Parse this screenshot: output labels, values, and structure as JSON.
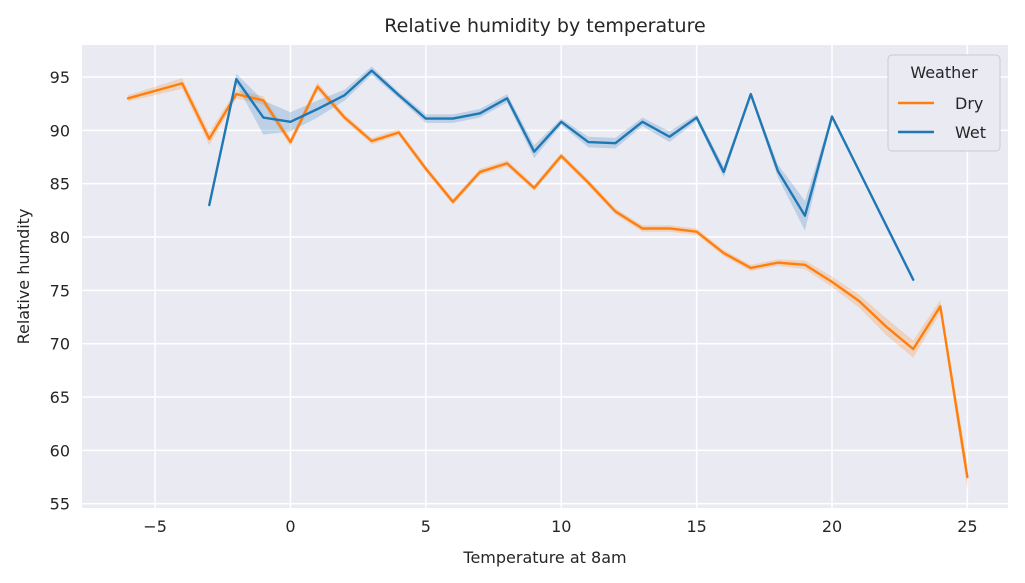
{
  "chart_data": {
    "type": "line",
    "title": "Relative humidity by temperature",
    "xlabel": "Temperature at 8am",
    "ylabel": "Relative humdity",
    "xlim": [
      -7.7,
      26.5
    ],
    "ylim": [
      54.6,
      98.0
    ],
    "xticks": [
      -5,
      0,
      5,
      10,
      15,
      20,
      25
    ],
    "xtick_labels": [
      "−5",
      "0",
      "5",
      "10",
      "15",
      "20",
      "25"
    ],
    "yticks": [
      55,
      60,
      65,
      70,
      75,
      80,
      85,
      90,
      95
    ],
    "ytick_labels": [
      "55",
      "60",
      "65",
      "70",
      "75",
      "80",
      "85",
      "90",
      "95"
    ],
    "grid": true,
    "background": "#eaeaf2",
    "legend": {
      "title": "Weather",
      "placement": "top-right"
    },
    "series": [
      {
        "name": "Dry",
        "color": "#ff7f0e",
        "x": [
          -6,
          -4,
          -3,
          -2,
          -1,
          0,
          1,
          2,
          3,
          4,
          5,
          6,
          7,
          8,
          9,
          10,
          11,
          12,
          13,
          14,
          15,
          16,
          17,
          18,
          19,
          20,
          21,
          22,
          23,
          24,
          25
        ],
        "y": [
          93.0,
          94.4,
          89.2,
          93.4,
          92.8,
          88.9,
          94.1,
          91.2,
          89.0,
          89.8,
          86.4,
          83.3,
          86.1,
          86.9,
          84.6,
          87.6,
          85.1,
          82.4,
          80.8,
          80.8,
          80.5,
          78.5,
          77.1,
          77.6,
          77.4,
          75.8,
          74.0,
          71.6,
          69.5,
          73.5,
          57.5
        ],
        "ci": [
          0.3,
          0.5,
          0.6,
          0.4,
          0.4,
          0.4,
          0.4,
          0.3,
          0.3,
          0.3,
          0.3,
          0.3,
          0.3,
          0.3,
          0.3,
          0.3,
          0.3,
          0.3,
          0.3,
          0.3,
          0.3,
          0.3,
          0.3,
          0.3,
          0.4,
          0.5,
          0.6,
          0.8,
          0.8,
          0.6,
          1.2
        ]
      },
      {
        "name": "Wet",
        "color": "#1f77b4",
        "x": [
          -3,
          -2,
          -1,
          0,
          1,
          2,
          3,
          4,
          5,
          6,
          7,
          8,
          9,
          10,
          11,
          12,
          13,
          14,
          15,
          16,
          17,
          18,
          19,
          20,
          21,
          22,
          23
        ],
        "y": [
          83.0,
          94.8,
          91.2,
          90.8,
          92.0,
          93.3,
          95.6,
          93.3,
          91.1,
          91.1,
          91.6,
          93.0,
          88.0,
          90.8,
          88.9,
          88.8,
          90.8,
          89.4,
          91.2,
          86.1,
          93.4,
          86.2,
          82.0,
          91.3,
          86.2,
          81.1,
          76.0
        ],
        "ci": [
          0.0,
          0.5,
          1.6,
          0.9,
          0.8,
          0.5,
          0.4,
          0.3,
          0.4,
          0.4,
          0.4,
          0.4,
          0.6,
          0.3,
          0.5,
          0.5,
          0.4,
          0.5,
          0.3,
          0.5,
          0.2,
          0.6,
          1.4,
          0.2,
          0.2,
          0.2,
          0.2
        ]
      }
    ]
  }
}
